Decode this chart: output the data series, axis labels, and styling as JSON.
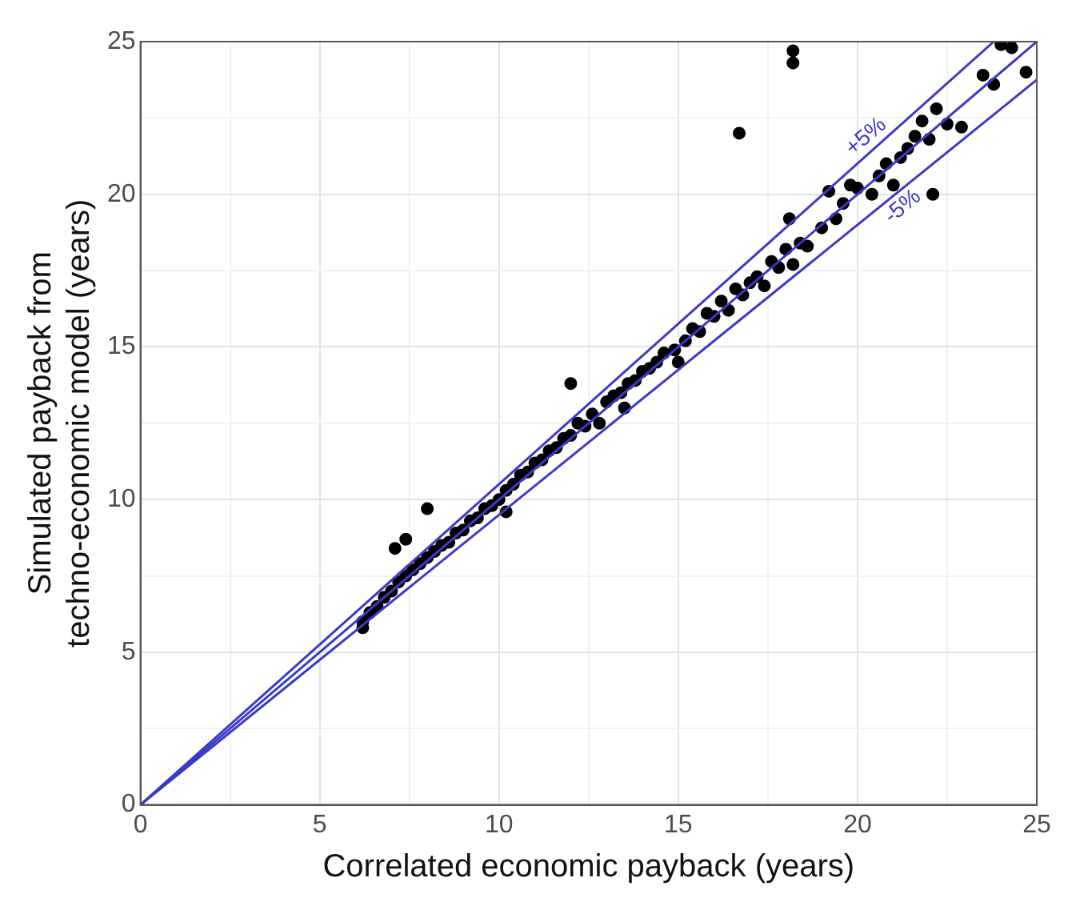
{
  "chart_data": {
    "type": "scatter",
    "xlabel": "Correlated economic payback (years)",
    "ylabel": "Simulated payback from\ntechno-economic model (years)",
    "xlim": [
      0,
      25
    ],
    "ylim": [
      0,
      25
    ],
    "xticks": [
      0,
      {
        "value": 2.5,
        "label": null
      },
      5,
      {
        "value": 7.5,
        "label": null
      },
      10,
      {
        "value": 12.5,
        "label": null
      },
      15,
      {
        "value": 17.5,
        "label": null
      },
      20,
      {
        "value": 22.5,
        "label": null
      },
      25
    ],
    "yticks": [
      0,
      {
        "value": 2.5,
        "label": null
      },
      5,
      {
        "value": 7.5,
        "label": null
      },
      10,
      {
        "value": 12.5,
        "label": null
      },
      15,
      {
        "value": 17.5,
        "label": null
      },
      20,
      {
        "value": 22.5,
        "label": null
      },
      25
    ],
    "grid": true,
    "legend": false,
    "marker": "circle",
    "annotations": [
      {
        "text": "+5%",
        "x": 20.5,
        "y": 21.525
      },
      {
        "text": "-5%",
        "x": 21.0,
        "y": 19.95
      }
    ],
    "series": [
      {
        "type": "line",
        "marker": "none",
        "color": "#3a3ac8",
        "x": [
          0,
          25
        ],
        "values": [
          0,
          25
        ]
      },
      {
        "type": "line",
        "marker": "none",
        "color": "#3a3ac8",
        "x": [
          0,
          23.8
        ],
        "values": [
          0,
          25
        ]
      },
      {
        "type": "line",
        "marker": "none",
        "color": "#3a3ac8",
        "x": [
          0,
          25
        ],
        "values": [
          0,
          23.75
        ]
      },
      {
        "color": "#000000",
        "x": [
          6.2,
          6.2,
          6.4,
          6.6,
          6.8,
          7.0,
          7.2,
          7.4,
          7.6,
          7.8,
          8.0,
          8.2,
          8.4,
          8.6,
          8.8,
          9.0,
          9.2,
          9.4,
          9.6,
          9.8,
          10.0,
          10.2,
          10.2,
          10.4,
          10.6,
          10.8,
          11.0,
          11.2,
          11.4,
          11.6,
          11.8,
          12.0,
          12.2,
          12.4,
          12.6,
          12.8,
          13.0,
          13.2,
          13.4,
          13.6,
          13.8,
          14.0,
          14.2,
          14.4,
          14.6,
          14.9,
          15.2,
          15.4,
          15.6,
          15.8,
          16.0,
          16.2,
          16.4,
          16.6,
          16.8,
          17.0,
          17.2,
          17.4,
          17.6,
          17.8,
          18.0,
          18.1,
          18.2,
          18.4,
          18.6,
          19.0,
          19.2,
          19.4,
          19.6,
          19.8,
          20.0,
          20.4,
          20.6,
          20.8,
          21.0,
          21.2,
          21.4,
          21.6,
          21.8,
          22.0,
          22.2,
          22.5,
          22.9,
          23.5,
          23.8,
          24.0,
          24.3,
          15.0,
          13.5,
          18.2,
          18.2,
          16.7,
          22.1,
          7.1,
          7.4,
          8.0,
          24.7,
          12.0
        ],
        "values": [
          5.8,
          6.0,
          6.3,
          6.5,
          6.8,
          7.0,
          7.3,
          7.5,
          7.7,
          7.9,
          8.1,
          8.3,
          8.5,
          8.6,
          8.9,
          9.0,
          9.3,
          9.4,
          9.7,
          9.8,
          10.0,
          9.6,
          10.3,
          10.5,
          10.8,
          10.9,
          11.2,
          11.3,
          11.6,
          11.7,
          12.0,
          12.1,
          12.5,
          12.4,
          12.8,
          12.5,
          13.2,
          13.4,
          13.5,
          13.8,
          13.9,
          14.2,
          14.3,
          14.5,
          14.8,
          14.9,
          15.2,
          15.6,
          15.5,
          16.1,
          16.0,
          16.5,
          16.2,
          16.9,
          16.7,
          17.1,
          17.3,
          17.0,
          17.8,
          17.6,
          18.2,
          19.2,
          17.7,
          18.4,
          18.3,
          18.9,
          20.1,
          19.2,
          19.7,
          20.3,
          20.2,
          20.0,
          20.6,
          21.0,
          20.3,
          21.2,
          21.5,
          21.9,
          22.4,
          21.8,
          22.8,
          22.3,
          22.2,
          23.9,
          23.6,
          24.9,
          24.8,
          14.5,
          13.0,
          24.7,
          24.3,
          22.0,
          20.0,
          8.4,
          8.7,
          9.7,
          24.0,
          13.8
        ]
      }
    ]
  }
}
